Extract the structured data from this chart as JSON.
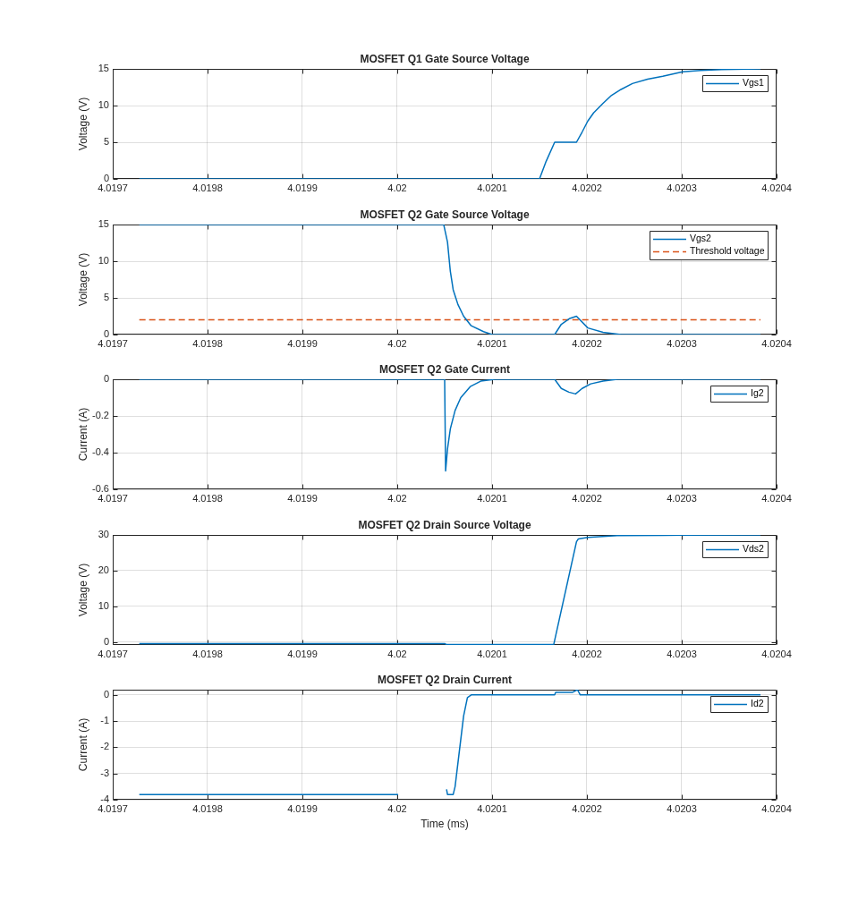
{
  "chart_data": [
    {
      "type": "line",
      "title": "MOSFET Q1 Gate Source Voltage",
      "ylabel": "Voltage (V)",
      "xlim": [
        4.0197,
        4.0204
      ],
      "xticks": [
        4.0197,
        4.0198,
        4.0199,
        4.02,
        4.0201,
        4.0202,
        4.0203,
        4.0204
      ],
      "ylim": [
        0,
        15
      ],
      "yticks": [
        0,
        5,
        10,
        15
      ],
      "grid": true,
      "legend": "top right",
      "series": [
        {
          "name": "Vgs1",
          "color": "#0072bd",
          "x": [
            4.019728,
            4.02015,
            4.020157,
            4.020166,
            4.020189,
            4.020195,
            4.020201,
            4.020207,
            4.020217,
            4.020226,
            4.020236,
            4.020248,
            4.020264,
            4.02028,
            4.020301,
            4.02032,
            4.020342,
            4.020383
          ],
          "values": [
            0,
            0,
            2.4,
            5,
            5,
            6.4,
            7.9,
            9,
            10.3,
            11.4,
            12.2,
            13,
            13.6,
            14,
            14.6,
            14.8,
            14.9,
            15
          ]
        }
      ]
    },
    {
      "type": "line",
      "title": "MOSFET Q2 Gate Source Voltage",
      "ylabel": "Voltage (V)",
      "xlim": [
        4.0197,
        4.0204
      ],
      "xticks": [
        4.0197,
        4.0198,
        4.0199,
        4.02,
        4.0201,
        4.0202,
        4.0203,
        4.0204
      ],
      "ylim": [
        0,
        15
      ],
      "yticks": [
        0,
        5,
        10,
        15
      ],
      "grid": true,
      "legend": "top right",
      "series": [
        {
          "name": "Vgs2",
          "color": "#0072bd",
          "x": [
            4.019728,
            4.020049,
            4.020053,
            4.020056,
            4.020059,
            4.020064,
            4.02007,
            4.020078,
            4.020091,
            4.0201,
            4.020166,
            4.020173,
            4.020182,
            4.020189,
            4.020201,
            4.020217,
            4.020236,
            4.020383
          ],
          "values": [
            15,
            15,
            12.6,
            8.6,
            6.1,
            4.1,
            2.5,
            1.2,
            0.4,
            0,
            0,
            1.4,
            2.2,
            2.5,
            0.9,
            0.3,
            0,
            0
          ]
        },
        {
          "name": "Threshold voltage",
          "color": "#d95319",
          "line_style": "dashed",
          "x": [
            4.019728,
            4.020383
          ],
          "values": [
            2,
            2
          ]
        }
      ]
    },
    {
      "type": "line",
      "title": "MOSFET Q2 Gate Current",
      "ylabel": "Current (A)",
      "xlim": [
        4.0197,
        4.0204
      ],
      "xticks": [
        4.0197,
        4.0198,
        4.0199,
        4.02,
        4.0201,
        4.0202,
        4.0203,
        4.0204
      ],
      "ylim": [
        -0.6,
        0
      ],
      "yticks": [
        -0.6,
        -0.4,
        -0.2,
        0
      ],
      "grid": true,
      "legend": "top right",
      "series": [
        {
          "name": "Ig2",
          "color": "#0072bd",
          "x": [
            4.019728,
            4.02005,
            4.020051,
            4.020053,
            4.020056,
            4.020061,
            4.020067,
            4.020077,
            4.020088,
            4.020103,
            4.020166,
            4.020173,
            4.020181,
            4.020188,
            4.020195,
            4.020204,
            4.020217,
            4.020232,
            4.020383
          ],
          "values": [
            0,
            0,
            -0.5,
            -0.38,
            -0.27,
            -0.17,
            -0.1,
            -0.04,
            -0.01,
            0,
            0,
            -0.05,
            -0.07,
            -0.08,
            -0.05,
            -0.025,
            -0.01,
            0,
            0
          ]
        }
      ]
    },
    {
      "type": "line",
      "title": "MOSFET Q2 Drain Source Voltage",
      "ylabel": "Voltage (V)",
      "xlim": [
        4.0197,
        4.0204
      ],
      "xticks": [
        4.0197,
        4.0198,
        4.0199,
        4.02,
        4.0201,
        4.0202,
        4.0203,
        4.0204
      ],
      "ylim": [
        -0.8,
        30
      ],
      "yticks": [
        0,
        10,
        20,
        30
      ],
      "grid": true,
      "legend": "top right",
      "series": [
        {
          "name": "Vds2",
          "color": "#0072bd",
          "x": [
            4.019728,
            4.02005,
            4.020052,
            4.020165,
            4.020189,
            4.020191,
            4.020201,
            4.020232,
            4.02028,
            4.020383
          ],
          "values": [
            -0.4,
            -0.4,
            -0.7,
            -0.7,
            28.1,
            28.9,
            29.3,
            29.8,
            29.9,
            30
          ]
        }
      ]
    },
    {
      "type": "line",
      "title": "MOSFET Q2 Drain Current",
      "xlabel": "Time (ms)",
      "ylabel": "Current (A)",
      "xlim": [
        4.0197,
        4.0204
      ],
      "xticks": [
        4.0197,
        4.0198,
        4.0199,
        4.02,
        4.0201,
        4.0202,
        4.0203,
        4.0204
      ],
      "ylim": [
        -4,
        0.2
      ],
      "yticks": [
        -4,
        -3,
        -2,
        -1,
        0
      ],
      "grid": true,
      "legend": "top right",
      "series": [
        {
          "name": "Id2",
          "color": "#0072bd",
          "x": [
            4.019728,
            4.020001,
            4.020026,
            4.020052,
            4.020053,
            4.020059,
            4.020061,
            4.020065,
            4.02007,
            4.020074,
            4.020078,
            4.020166,
            4.020167,
            4.020185,
            4.02019,
            4.020193,
            4.020383
          ],
          "values": [
            -3.8,
            -3.8,
            null,
            -3.6,
            -3.8,
            -3.8,
            -3.5,
            -2.3,
            -0.8,
            -0.1,
            0,
            0,
            0.1,
            0.1,
            0.2,
            0,
            0
          ]
        }
      ]
    }
  ]
}
